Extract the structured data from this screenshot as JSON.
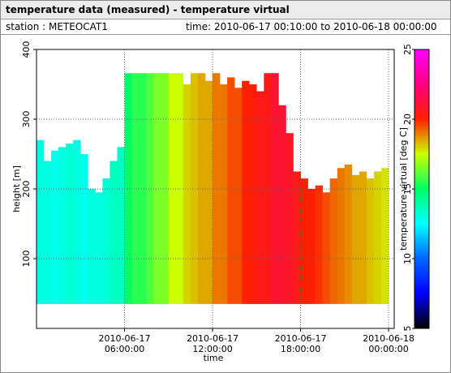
{
  "header": {
    "title": "temperature data (measured) - temperature virtual",
    "station": "station : METEOCAT1",
    "time_range": "time: 2010-06-17 00:10:00 to 2010-06-18 00:00:00"
  },
  "chart_data": {
    "type": "heatmap-columns",
    "xlabel": "time",
    "ylabel": "height [m]",
    "colorbar_label": "temperature virtual [deg C]",
    "x": [
      "2010-06-17 00:00:00",
      "2010-06-17 00:30:00",
      "2010-06-17 01:00:00",
      "2010-06-17 01:30:00",
      "2010-06-17 02:00:00",
      "2010-06-17 02:30:00",
      "2010-06-17 03:00:00",
      "2010-06-17 03:30:00",
      "2010-06-17 04:00:00",
      "2010-06-17 04:30:00",
      "2010-06-17 05:00:00",
      "2010-06-17 05:30:00",
      "2010-06-17 06:00:00",
      "2010-06-17 06:30:00",
      "2010-06-17 07:00:00",
      "2010-06-17 07:30:00",
      "2010-06-17 08:00:00",
      "2010-06-17 08:30:00",
      "2010-06-17 09:00:00",
      "2010-06-17 09:30:00",
      "2010-06-17 10:00:00",
      "2010-06-17 10:30:00",
      "2010-06-17 11:00:00",
      "2010-06-17 11:30:00",
      "2010-06-17 12:00:00",
      "2010-06-17 12:30:00",
      "2010-06-17 13:00:00",
      "2010-06-17 13:30:00",
      "2010-06-17 14:00:00",
      "2010-06-17 14:30:00",
      "2010-06-17 15:00:00",
      "2010-06-17 15:30:00",
      "2010-06-17 16:00:00",
      "2010-06-17 16:30:00",
      "2010-06-17 17:00:00",
      "2010-06-17 17:30:00",
      "2010-06-17 18:00:00",
      "2010-06-17 18:30:00",
      "2010-06-17 19:00:00",
      "2010-06-17 19:30:00",
      "2010-06-17 20:00:00",
      "2010-06-17 20:30:00",
      "2010-06-17 21:00:00",
      "2010-06-17 21:30:00",
      "2010-06-17 22:00:00",
      "2010-06-17 22:30:00",
      "2010-06-17 23:00:00",
      "2010-06-17 23:30:00"
    ],
    "column_width_minutes": 30,
    "base": 35,
    "tops": [
      270,
      240,
      255,
      260,
      265,
      270,
      250,
      200,
      195,
      215,
      240,
      260,
      366,
      366,
      366,
      366,
      366,
      366,
      366,
      366,
      350,
      366,
      366,
      355,
      366,
      350,
      360,
      345,
      355,
      350,
      340,
      366,
      366,
      320,
      280,
      225,
      215,
      200,
      205,
      195,
      215,
      230,
      235,
      220,
      225,
      215,
      225,
      230
    ],
    "values": [
      13,
      13,
      12.8,
      13,
      13.2,
      13,
      12.8,
      13,
      13,
      13.2,
      13.5,
      13.5,
      15,
      15.5,
      15.5,
      16,
      16.5,
      16.5,
      17.5,
      17.5,
      18,
      18.2,
      18.5,
      18.5,
      19,
      19,
      19.5,
      19.5,
      20,
      20.2,
      20.5,
      20.5,
      21,
      21,
      20.8,
      20.5,
      20,
      20,
      19.8,
      19.5,
      19.2,
      19,
      18.8,
      18.5,
      18.5,
      18.2,
      18,
      17.8
    ],
    "xlim": [
      "2010-06-17 00:00:00",
      "2010-06-18 00:23:00"
    ],
    "xticks": [
      {
        "value": "2010-06-17 06:00:00",
        "label": "2010-06-17\n06:00:00"
      },
      {
        "value": "2010-06-17 12:00:00",
        "label": "2010-06-17\n12:00:00"
      },
      {
        "value": "2010-06-17 18:00:00",
        "label": "2010-06-17\n18:00:00"
      },
      {
        "value": "2010-06-18 00:00:00",
        "label": "2010-06-18\n00:00:00"
      }
    ],
    "ylim": [
      0,
      400
    ],
    "yticks": [
      100,
      200,
      300,
      400
    ],
    "clim": [
      5,
      25
    ],
    "cticks": [
      5,
      10,
      15,
      20,
      25
    ],
    "colormap": [
      "#000000",
      "#0000ff",
      "#0066ff",
      "#00ffff",
      "#00ff66",
      "#ccff00",
      "#ff2000",
      "#ff0080",
      "#ff00ff"
    ],
    "grid": true
  }
}
